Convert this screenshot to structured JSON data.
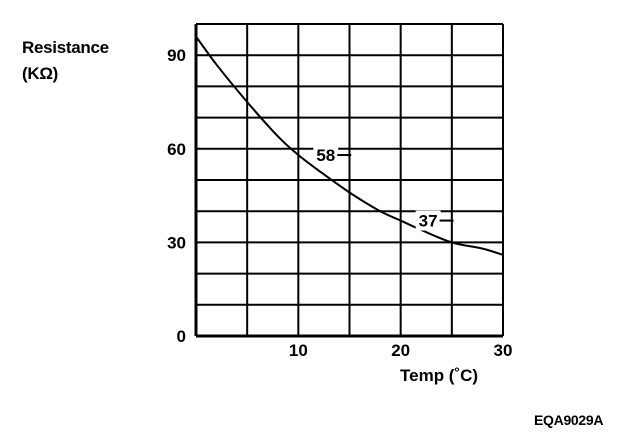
{
  "chart_data": {
    "type": "line",
    "ylabel_lines": [
      "Resistance",
      "(KΩ)"
    ],
    "xlabel": "Temp (˚C)",
    "x_ticks": [
      0,
      10,
      20,
      30
    ],
    "x_tick_labels": [
      "10",
      "20",
      "30"
    ],
    "y_ticks": [
      0,
      30,
      60,
      90
    ],
    "y_tick_labels": [
      "0",
      "30",
      "60",
      "90"
    ],
    "xlim": [
      0,
      30
    ],
    "ylim": [
      0,
      100
    ],
    "grid": true,
    "series": [
      {
        "x": [
          0,
          2,
          5,
          8,
          10,
          12,
          15,
          18,
          20,
          22,
          25,
          28,
          30
        ],
        "y": [
          96,
          87,
          75,
          64,
          58,
          53,
          46,
          40,
          37,
          34,
          30,
          28,
          26
        ]
      }
    ],
    "annotations": [
      {
        "text": "58",
        "x": 10,
        "y": 58
      },
      {
        "text": "37",
        "x": 20,
        "y": 37
      }
    ]
  },
  "figure_id": "EQA9029A"
}
